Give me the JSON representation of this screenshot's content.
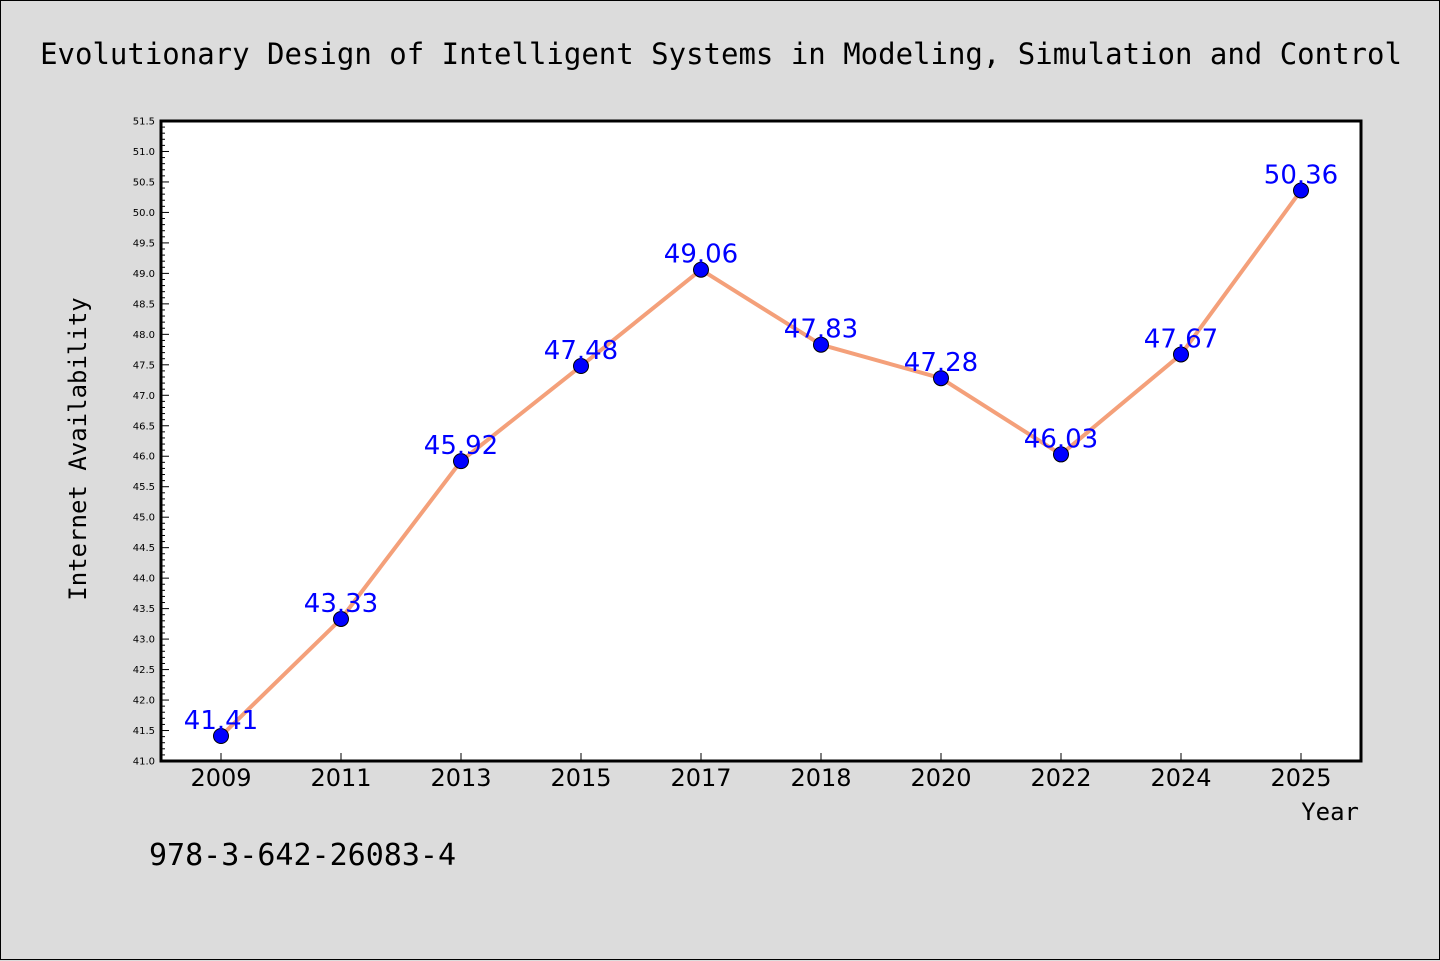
{
  "chart_data": {
    "type": "line",
    "title": "Evolutionary Design of Intelligent Systems in Modeling, Simulation and Control",
    "xlabel": "Year",
    "ylabel": "Internet Availability",
    "categories": [
      "2009",
      "2011",
      "2013",
      "2015",
      "2017",
      "2018",
      "2020",
      "2022",
      "2024",
      "2025"
    ],
    "values": [
      41.41,
      43.33,
      45.92,
      47.48,
      49.06,
      47.83,
      47.28,
      46.03,
      47.67,
      50.36
    ],
    "data_labels": [
      "41.41",
      "43.33",
      "45.92",
      "47.48",
      "49.06",
      "47.83",
      "47.28",
      "46.03",
      "47.67",
      "50.36"
    ],
    "ylim": [
      41.0,
      51.5
    ],
    "yticks": [
      "41.0",
      "41.5",
      "42.0",
      "42.5",
      "43.0",
      "43.5",
      "44.0",
      "44.5",
      "45.0",
      "45.5",
      "46.0",
      "46.5",
      "47.0",
      "47.5",
      "48.0",
      "48.5",
      "49.0",
      "49.5",
      "50.0",
      "50.5",
      "51.0",
      "51.5"
    ],
    "grid": false,
    "line_color": "#f4a07a",
    "marker_color": "#0000ff",
    "label_color": "#0000ff",
    "background_color": "#dcdcdc",
    "plot_background": "#ffffff"
  },
  "footnote": "978-3-642-26083-4"
}
